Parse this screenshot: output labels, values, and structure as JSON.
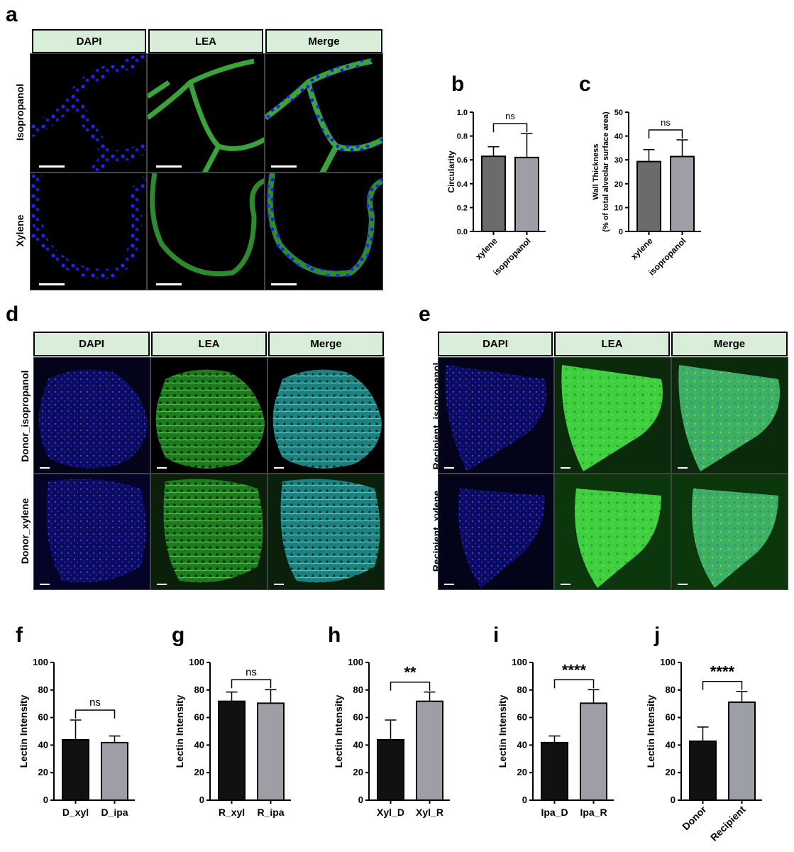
{
  "panel_letters": {
    "a": "a",
    "b": "b",
    "c": "c",
    "d": "d",
    "e": "e",
    "f": "f",
    "g": "g",
    "h": "h",
    "i": "i",
    "j": "j"
  },
  "panel_a": {
    "headers": [
      "DAPI",
      "LEA",
      "Merge"
    ],
    "rows": [
      "Isopropanol",
      "Xylene"
    ]
  },
  "panel_d": {
    "headers": [
      "DAPI",
      "LEA",
      "Merge"
    ],
    "rows": [
      "Donor_isopropanol",
      "Donor_xylene"
    ]
  },
  "panel_e": {
    "headers": [
      "DAPI",
      "LEA",
      "Merge"
    ],
    "rows": [
      "Recipient_isopropanol",
      "Recipient_xylene"
    ]
  },
  "colors": {
    "dapi": "#1a1aff",
    "lea": "#2fa82f",
    "merge_tint": "#2aa6a6",
    "bar_dark": "#111111",
    "bar_grey": "#9e9ea6",
    "bar_mid": "#6b6b6b",
    "header_bg": "#d9eed9"
  },
  "chart_data": [
    {
      "id": "b",
      "type": "bar",
      "categories": [
        "xylene",
        "isopropanol"
      ],
      "values": [
        0.63,
        0.62
      ],
      "errors": [
        0.08,
        0.2
      ],
      "ylabel": "Circularity",
      "ylim": [
        0,
        1.0
      ],
      "yticks": [
        "0.0",
        "0.2",
        "0.4",
        "0.6",
        "0.8",
        "1.0"
      ],
      "significance": "ns",
      "colors": [
        "#6b6b6b",
        "#9e9ea6"
      ]
    },
    {
      "id": "c",
      "type": "bar",
      "categories": [
        "xylene",
        "isopropanol"
      ],
      "values": [
        29.3,
        31.4
      ],
      "errors": [
        5,
        7
      ],
      "ylabel": "Wall Thickness\n(% of total alveolar surface area)",
      "ylim": [
        0,
        50
      ],
      "yticks": [
        "0",
        "10",
        "20",
        "30",
        "40",
        "50"
      ],
      "significance": "ns",
      "colors": [
        "#6b6b6b",
        "#9e9ea6"
      ]
    },
    {
      "id": "f",
      "type": "bar",
      "categories": [
        "D_xyl",
        "D_ipa"
      ],
      "values": [
        43.8,
        41.8
      ],
      "errors": [
        14.4,
        4.8
      ],
      "ylabel": "Lectin Intensity",
      "ylim": [
        0,
        100
      ],
      "yticks": [
        "0",
        "20",
        "40",
        "60",
        "80",
        "100"
      ],
      "significance": "ns",
      "colors": [
        "#111111",
        "#9e9ea6"
      ]
    },
    {
      "id": "g",
      "type": "bar",
      "categories": [
        "R_xyl",
        "R_ipa"
      ],
      "values": [
        71.8,
        70.4
      ],
      "errors": [
        6.7,
        9.8
      ],
      "ylabel": "Lectin Intensity",
      "ylim": [
        0,
        100
      ],
      "yticks": [
        "0",
        "20",
        "40",
        "60",
        "80",
        "100"
      ],
      "significance": "ns",
      "colors": [
        "#111111",
        "#9e9ea6"
      ]
    },
    {
      "id": "h",
      "type": "bar",
      "categories": [
        "Xyl_D",
        "Xyl_R"
      ],
      "values": [
        43.8,
        71.8
      ],
      "errors": [
        14.4,
        6.7
      ],
      "ylabel": "Lectin Intensity",
      "ylim": [
        0,
        100
      ],
      "yticks": [
        "0",
        "20",
        "40",
        "60",
        "80",
        "100"
      ],
      "significance": "**",
      "colors": [
        "#111111",
        "#9e9ea6"
      ]
    },
    {
      "id": "i",
      "type": "bar",
      "categories": [
        "Ipa_D",
        "Ipa_R"
      ],
      "values": [
        41.8,
        70.4
      ],
      "errors": [
        4.8,
        9.8
      ],
      "ylabel": "Lectin Intensity",
      "ylim": [
        0,
        100
      ],
      "yticks": [
        "0",
        "20",
        "40",
        "60",
        "80",
        "100"
      ],
      "significance": "****",
      "colors": [
        "#111111",
        "#9e9ea6"
      ]
    },
    {
      "id": "j",
      "type": "bar",
      "categories": [
        "Donor",
        "Recipient"
      ],
      "values": [
        42.8,
        71.1
      ],
      "errors": [
        10.3,
        7.9
      ],
      "ylabel": "Lectin Intensity",
      "ylim": [
        0,
        100
      ],
      "yticks": [
        "0",
        "20",
        "40",
        "60",
        "80",
        "100"
      ],
      "significance": "****",
      "colors": [
        "#111111",
        "#9e9ea6"
      ]
    }
  ]
}
